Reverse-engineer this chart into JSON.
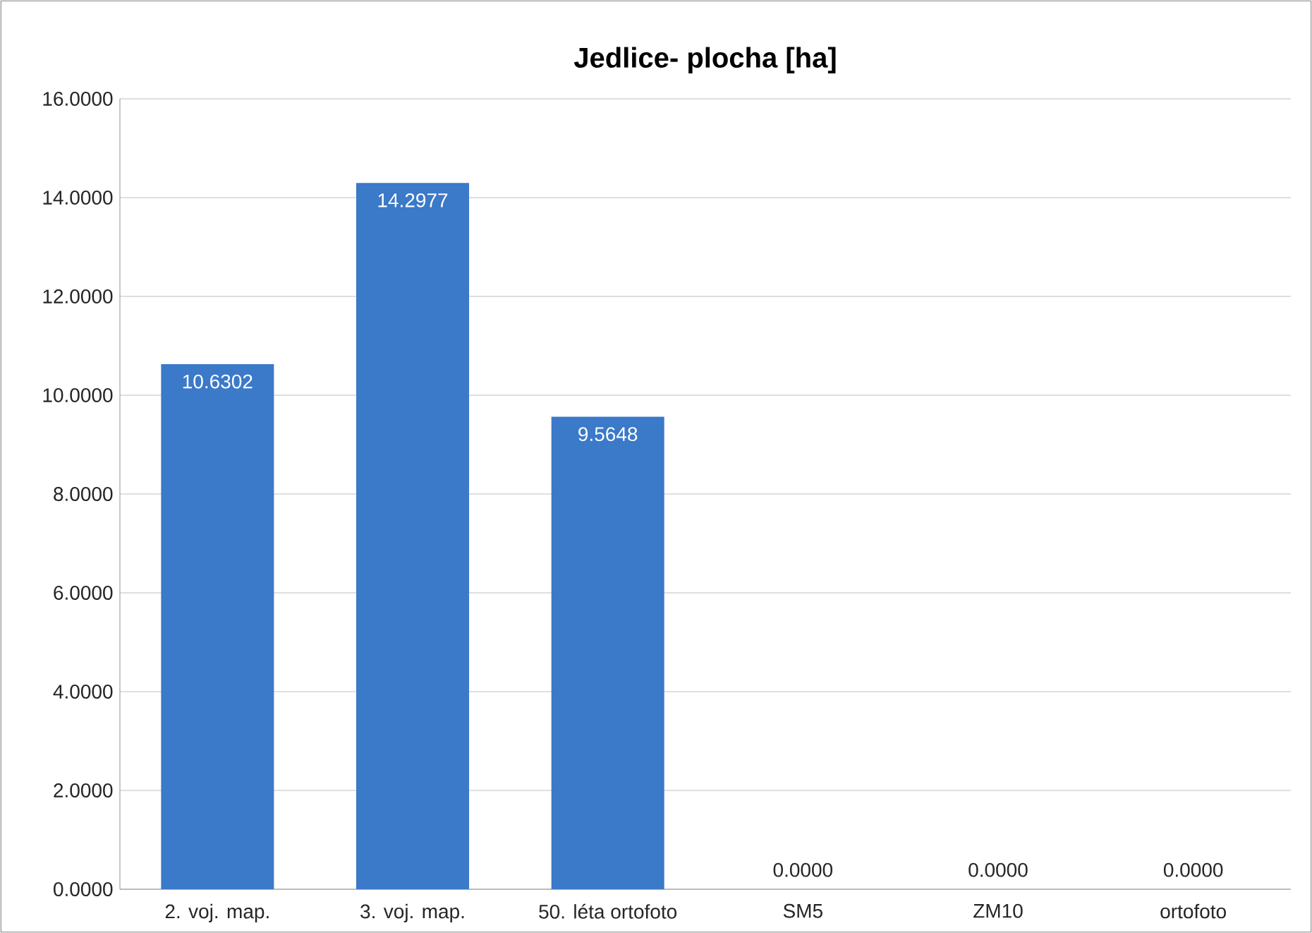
{
  "chart_data": {
    "type": "bar",
    "title": "Jedlice- plocha [ha]",
    "categories": [
      "2. voj. map.",
      "3. voj. map.",
      "50. léta ortofoto",
      "SM5",
      "ZM10",
      "ortofoto"
    ],
    "values": [
      10.6302,
      14.2977,
      9.5648,
      0,
      0,
      0
    ],
    "value_labels": [
      "10.6302",
      "14.2977",
      "9.5648",
      "0.0000",
      "0.0000",
      "0.0000"
    ],
    "color": "#3b79c9",
    "ylim": [
      0,
      16
    ],
    "yticks": [
      {
        "value": 0,
        "label": "0.0000"
      },
      {
        "value": 2,
        "label": "2.0000"
      },
      {
        "value": 4,
        "label": "4.0000"
      },
      {
        "value": 6,
        "label": "6.0000"
      },
      {
        "value": 8,
        "label": "8.0000"
      },
      {
        "value": 10,
        "label": "10.0000"
      },
      {
        "value": 12,
        "label": "12.0000"
      },
      {
        "value": 14,
        "label": "14.0000"
      },
      {
        "value": 16,
        "label": "16.0000"
      }
    ],
    "grid": "y"
  }
}
